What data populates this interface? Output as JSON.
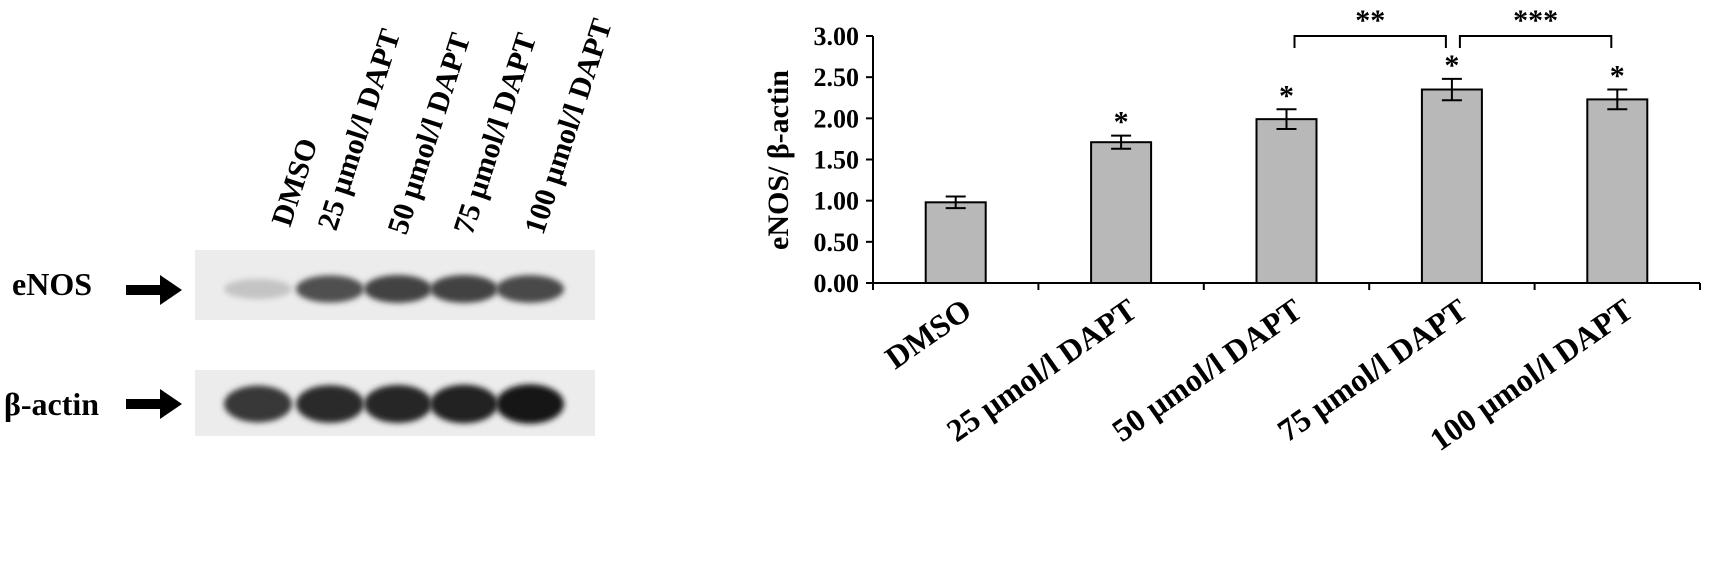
{
  "blot": {
    "lanes": [
      "DMSO",
      "25 µmol/l  DAPT",
      "50 µmol/l  DAPT",
      "75 µmol/l  DAPT",
      "100 µmol/l  DAPT"
    ],
    "rows": [
      {
        "label": "eNOS",
        "band_intensity": [
          0.25,
          0.75,
          0.8,
          0.8,
          0.78
        ]
      },
      {
        "label": "β-actin",
        "band_intensity": [
          0.85,
          0.9,
          0.92,
          0.95,
          1.0
        ]
      }
    ]
  },
  "chart_data": {
    "type": "bar",
    "categories": [
      "DMSO",
      "25 µmol/l  DAPT",
      "50 µmol/l  DAPT",
      "75 µmol/l  DAPT",
      "100 µmol/l  DAPT"
    ],
    "values": [
      0.98,
      1.71,
      1.99,
      2.35,
      2.23
    ],
    "errors": [
      0.07,
      0.08,
      0.12,
      0.13,
      0.12
    ],
    "significance": [
      "",
      "*",
      "*",
      "*",
      "*"
    ],
    "comparisons": [
      {
        "from": 2,
        "to": 3,
        "label": "**"
      },
      {
        "from": 3,
        "to": 4,
        "label": "***"
      }
    ],
    "ylabel": "eNOS/ β-actin",
    "ylim": [
      0,
      3.0
    ],
    "yticks": [
      "0.00",
      "0.50",
      "1.00",
      "1.50",
      "2.00",
      "2.50",
      "3.00"
    ],
    "bar_color": "#b8b8b8",
    "grid": false
  }
}
